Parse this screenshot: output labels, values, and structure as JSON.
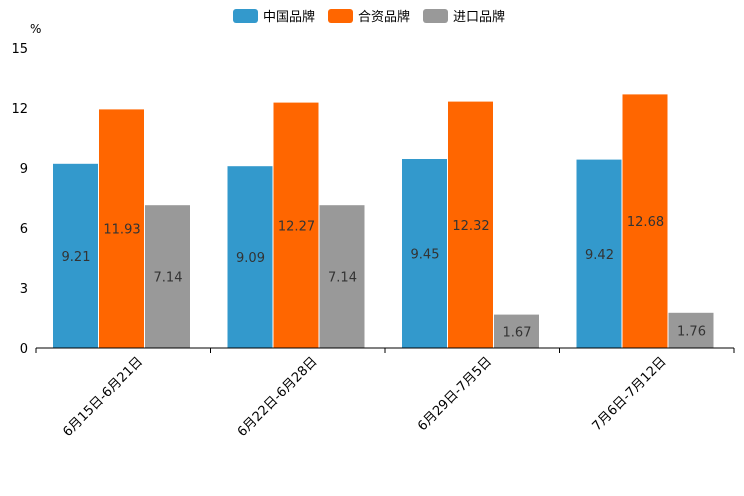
{
  "chart_data": {
    "type": "bar",
    "title": "",
    "ylabel": "%",
    "xlabel": "",
    "ylim": [
      0,
      15
    ],
    "yticks": [
      0,
      3,
      6,
      9,
      12,
      15
    ],
    "categories": [
      "6月15日-6月21日",
      "6月22日-6月28日",
      "6月29日-7月5日",
      "7月6日-7月12日"
    ],
    "series": [
      {
        "name": "中国品牌",
        "color": "#3399cc",
        "values": [
          9.21,
          9.09,
          9.45,
          9.42
        ]
      },
      {
        "name": "合资品牌",
        "color": "#ff6600",
        "values": [
          11.93,
          12.27,
          12.32,
          12.68
        ]
      },
      {
        "name": "进口品牌",
        "color": "#999999",
        "values": [
          7.14,
          7.14,
          1.67,
          1.76
        ]
      }
    ],
    "legend_position": "top-center",
    "grid": false
  }
}
